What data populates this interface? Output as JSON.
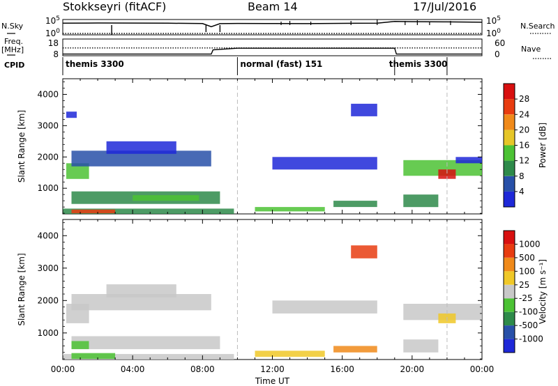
{
  "header": {
    "station": "Stokkseyri (fitACF)",
    "beam": "Beam 14",
    "date": "17/Jul/2016"
  },
  "side_labels": {
    "nsky": "N.Sky",
    "nsearch": "N.Search",
    "freq_line1": "Freq.",
    "freq_line2": "[MHz]",
    "nave": "Nave",
    "cpid": "CPID"
  },
  "chart_data": [
    {
      "type": "line",
      "panel": "noise",
      "left_ticks": [
        "10^5",
        "10^0"
      ],
      "right_ticks": [
        "10^5",
        "10^0"
      ],
      "series": [
        {
          "name": "N.Sky",
          "style": "solid",
          "x": [
            0,
            2,
            4,
            6,
            8,
            8.5,
            9,
            10,
            12,
            14,
            16,
            18,
            19,
            20,
            22,
            24
          ],
          "values": [
            12000,
            15000,
            14000,
            12000,
            9000,
            500,
            8000,
            10000,
            9000,
            8000,
            11000,
            12000,
            60000,
            50000,
            40000,
            30000
          ]
        },
        {
          "name": "N.Search",
          "style": "dotted",
          "x": [
            0,
            24
          ],
          "values": [
            1,
            1
          ]
        }
      ]
    },
    {
      "type": "line",
      "panel": "frequency",
      "left_ticks": [
        "18",
        "8"
      ],
      "right_ticks": [
        "60",
        "0"
      ],
      "series": [
        {
          "name": "Freq.",
          "style": "solid",
          "x": [
            0,
            8.5,
            8.6,
            10,
            19,
            19.1,
            24
          ],
          "values": [
            9,
            9,
            11.5,
            12.5,
            12.5,
            9,
            9
          ]
        },
        {
          "name": "Nave",
          "style": "dotted",
          "x": [
            0,
            24
          ],
          "values": [
            28,
            28
          ]
        }
      ]
    },
    {
      "type": "bar",
      "panel": "cpid",
      "segments": [
        {
          "label": "themis 3300",
          "start": 0,
          "end": 10
        },
        {
          "label": "normal (fast) 151",
          "start": 10,
          "end": 19
        },
        {
          "label": "themis 3300",
          "start": 19,
          "end": 24
        }
      ],
      "extra_markers": [
        22
      ]
    },
    {
      "type": "heatmap",
      "panel": "power",
      "ylabel": "Slant Range [km]",
      "ylim": [
        180,
        4500
      ],
      "yticks": [
        1000,
        2000,
        3000,
        4000
      ],
      "xlim": [
        0,
        24
      ],
      "colorbar": {
        "label": "Power [dB]",
        "ticks": [
          "4",
          "8",
          "12",
          "16",
          "20",
          "24",
          "28"
        ],
        "colors": [
          "#1e28d8",
          "#2850a8",
          "#2e8a4a",
          "#4cc234",
          "#e6c628",
          "#f08a1a",
          "#e83c10",
          "#d81010"
        ]
      },
      "regions": [
        {
          "t0": 0.0,
          "t1": 9.8,
          "r0": 180,
          "r1": 350,
          "level": 2
        },
        {
          "t0": 0.5,
          "t1": 3.0,
          "r0": 200,
          "r1": 320,
          "level": 6
        },
        {
          "t0": 0.2,
          "t1": 1.5,
          "r0": 1300,
          "r1": 1800,
          "level": 3
        },
        {
          "t0": 0.5,
          "t1": 8.5,
          "r0": 1700,
          "r1": 2200,
          "level": 1
        },
        {
          "t0": 2.5,
          "t1": 6.5,
          "r0": 2100,
          "r1": 2500,
          "level": 0
        },
        {
          "t0": 0.5,
          "t1": 9.0,
          "r0": 500,
          "r1": 900,
          "level": 2
        },
        {
          "t0": 4.0,
          "t1": 7.8,
          "r0": 600,
          "r1": 780,
          "level": 3
        },
        {
          "t0": 0.2,
          "t1": 0.8,
          "r0": 3250,
          "r1": 3450,
          "level": 0
        },
        {
          "t0": 11.0,
          "t1": 15.0,
          "r0": 260,
          "r1": 400,
          "level": 3
        },
        {
          "t0": 15.5,
          "t1": 18.0,
          "r0": 400,
          "r1": 600,
          "level": 2
        },
        {
          "t0": 12.0,
          "t1": 18.0,
          "r0": 1600,
          "r1": 2000,
          "level": 0
        },
        {
          "t0": 19.5,
          "t1": 24.0,
          "r0": 1400,
          "r1": 1900,
          "level": 3
        },
        {
          "t0": 21.5,
          "t1": 22.5,
          "r0": 1300,
          "r1": 1600,
          "level": 7
        },
        {
          "t0": 22.5,
          "t1": 24.0,
          "r0": 1800,
          "r1": 2000,
          "level": 0
        },
        {
          "t0": 16.5,
          "t1": 18.0,
          "r0": 3300,
          "r1": 3700,
          "level": 0
        },
        {
          "t0": 19.5,
          "t1": 21.5,
          "r0": 400,
          "r1": 800,
          "level": 2
        }
      ]
    },
    {
      "type": "heatmap",
      "panel": "velocity",
      "ylabel": "Slant Range [km]",
      "ylim": [
        180,
        4500
      ],
      "yticks": [
        1000,
        2000,
        3000,
        4000
      ],
      "xlim": [
        0,
        24
      ],
      "xlabel": "Time UT",
      "xticks": [
        "00:00",
        "04:00",
        "08:00",
        "12:00",
        "16:00",
        "20:00",
        "00:00"
      ],
      "colorbar": {
        "label": "Velocity [m s⁻¹]",
        "ticks": [
          "1000",
          "500",
          "100",
          "25",
          "-25",
          "-100",
          "-500",
          "-1000"
        ],
        "colors": [
          "#1e28d8",
          "#2850a8",
          "#2e8a4a",
          "#4cc234",
          "#c8c8c8",
          "#f0c828",
          "#f08a1a",
          "#e83c10",
          "#d81010"
        ]
      },
      "regions": [
        {
          "t0": 0.0,
          "t1": 9.8,
          "r0": 180,
          "r1": 350,
          "level": 4
        },
        {
          "t0": 0.5,
          "t1": 3.0,
          "r0": 200,
          "r1": 380,
          "level": 3
        },
        {
          "t0": 0.2,
          "t1": 1.5,
          "r0": 1300,
          "r1": 1900,
          "level": 4
        },
        {
          "t0": 0.5,
          "t1": 8.5,
          "r0": 1700,
          "r1": 2200,
          "level": 4
        },
        {
          "t0": 2.5,
          "t1": 6.5,
          "r0": 2100,
          "r1": 2500,
          "level": 4
        },
        {
          "t0": 0.5,
          "t1": 9.0,
          "r0": 500,
          "r1": 900,
          "level": 4
        },
        {
          "t0": 0.5,
          "t1": 1.5,
          "r0": 500,
          "r1": 750,
          "level": 3
        },
        {
          "t0": 11.0,
          "t1": 15.0,
          "r0": 260,
          "r1": 450,
          "level": 5
        },
        {
          "t0": 15.5,
          "t1": 18.0,
          "r0": 400,
          "r1": 600,
          "level": 6
        },
        {
          "t0": 12.0,
          "t1": 18.0,
          "r0": 1600,
          "r1": 2000,
          "level": 4
        },
        {
          "t0": 19.5,
          "t1": 24.0,
          "r0": 1400,
          "r1": 1900,
          "level": 4
        },
        {
          "t0": 21.5,
          "t1": 22.5,
          "r0": 1300,
          "r1": 1600,
          "level": 5
        },
        {
          "t0": 16.5,
          "t1": 18.0,
          "r0": 3300,
          "r1": 3700,
          "level": 7
        },
        {
          "t0": 19.5,
          "t1": 21.5,
          "r0": 400,
          "r1": 800,
          "level": 4
        }
      ]
    }
  ]
}
